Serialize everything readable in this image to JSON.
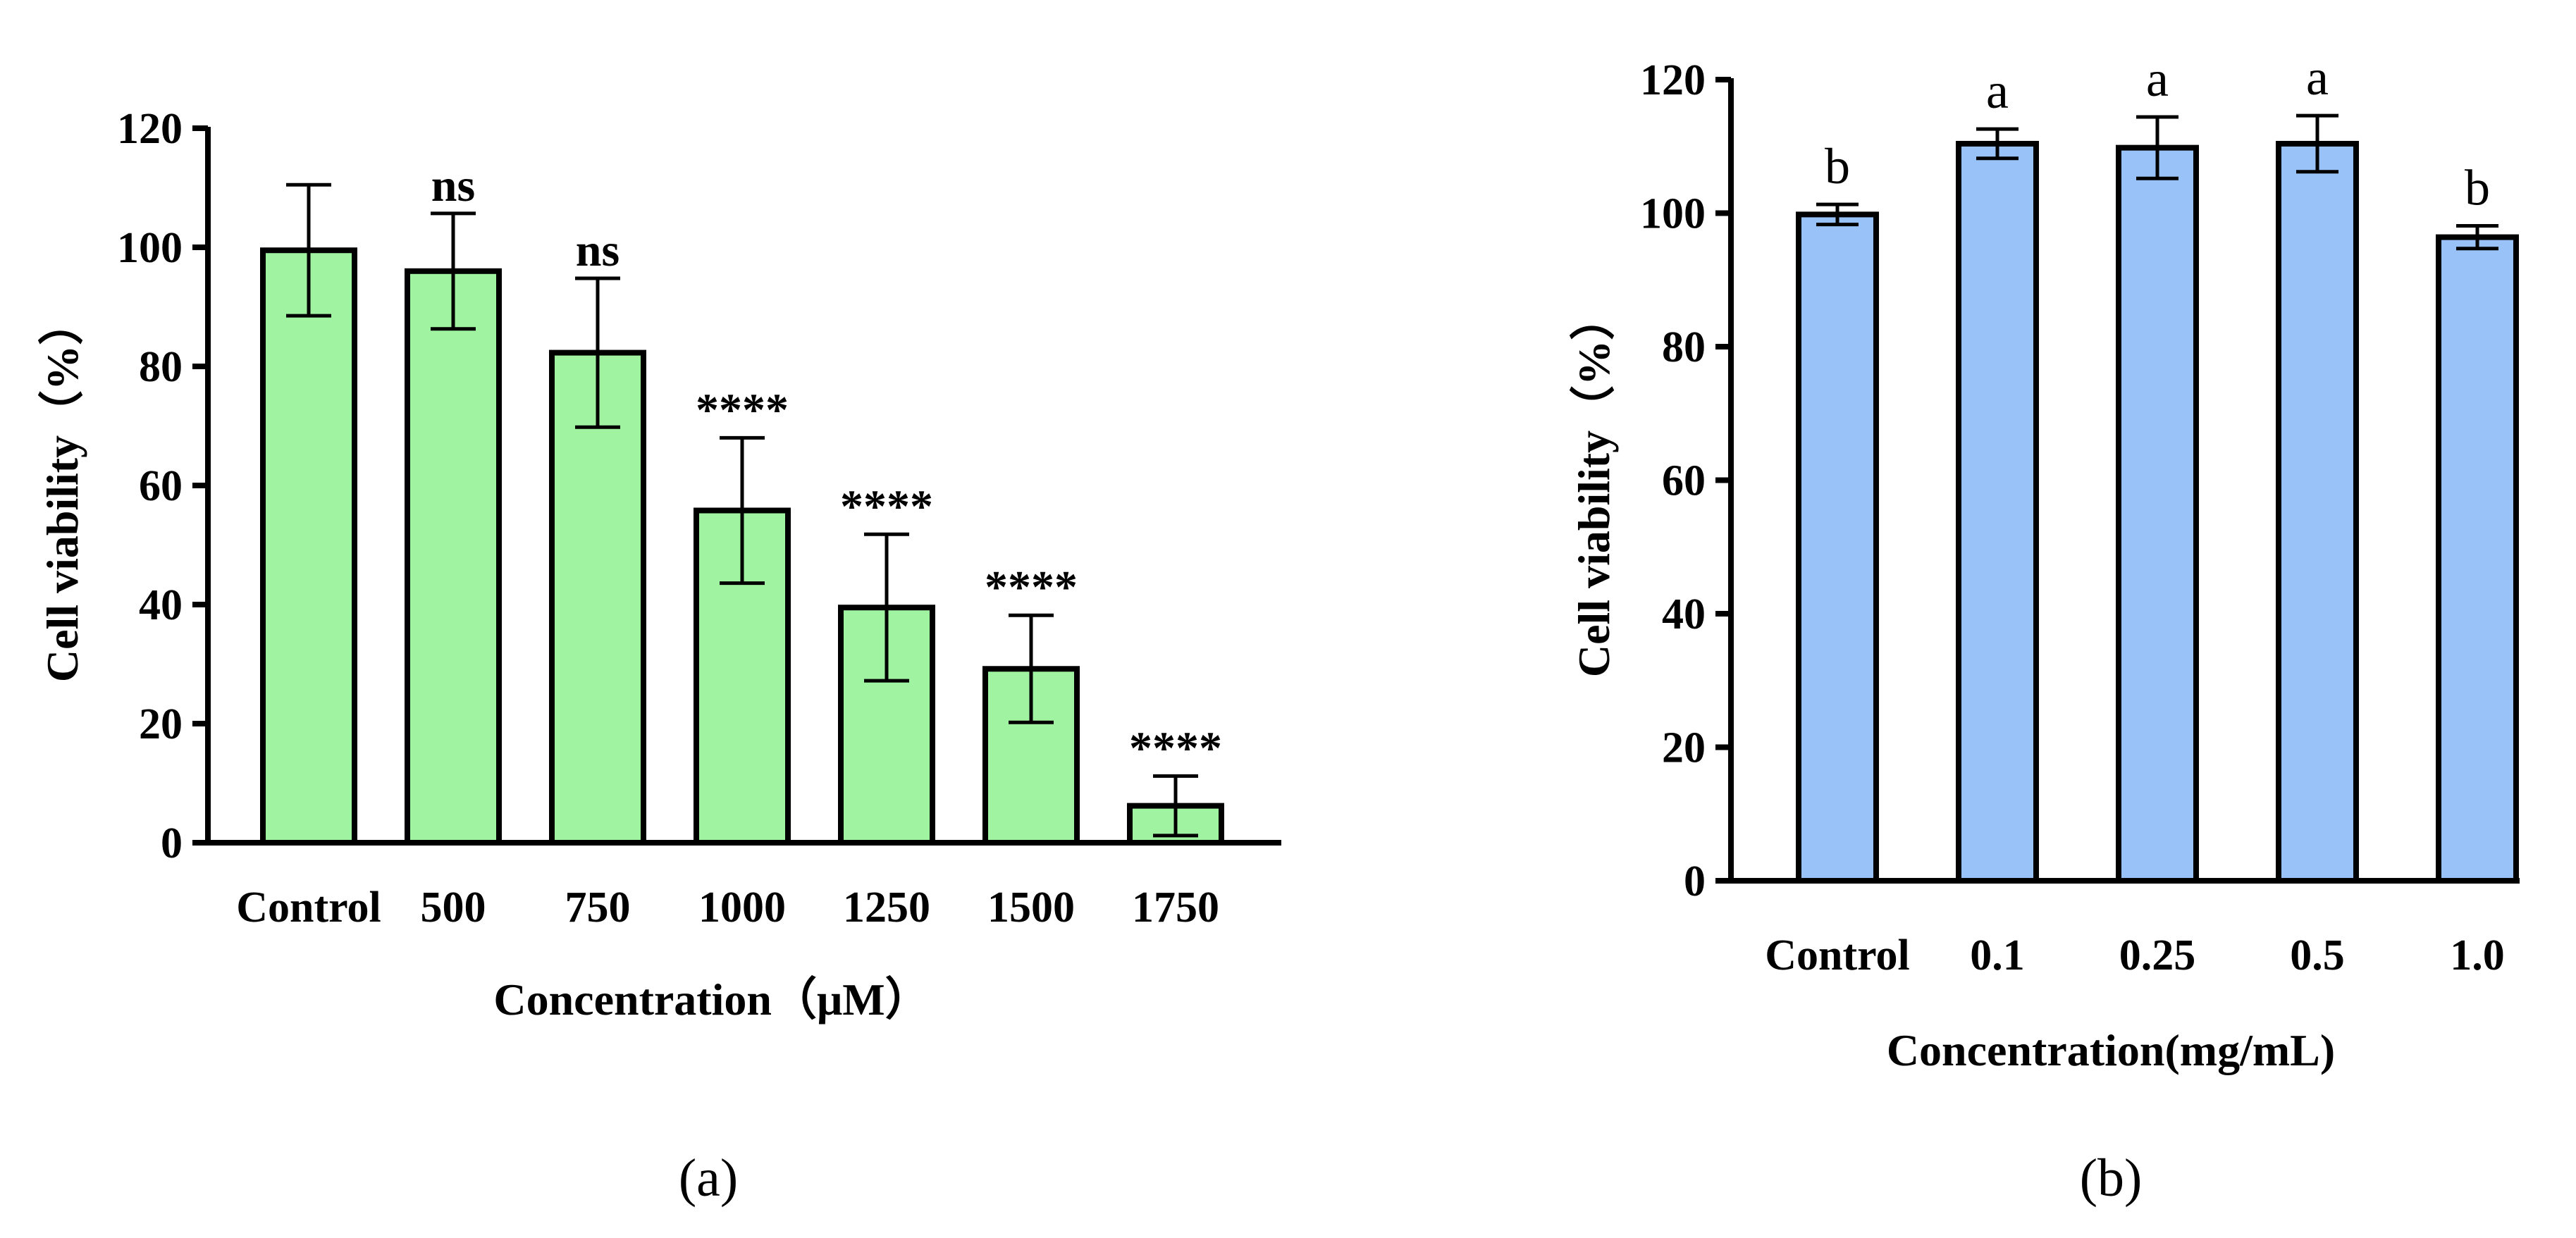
{
  "chart_data": [
    {
      "type": "bar",
      "panel": "(a)",
      "title": "",
      "xlabel": "Concentration（μM）",
      "ylabel": "Cell viability（%）",
      "ylim": [
        0,
        120
      ],
      "yticks": [
        0,
        20,
        40,
        60,
        80,
        100,
        120
      ],
      "categories": [
        "Control",
        "500",
        "750",
        "1000",
        "1250",
        "1500",
        "1750"
      ],
      "values": [
        99.5,
        96,
        82.3,
        55.8,
        39.5,
        29.2,
        6.2
      ],
      "errors": [
        11,
        9.7,
        12.5,
        12.2,
        12.3,
        9,
        5
      ],
      "annotations": [
        "",
        "ns",
        "ns",
        "****",
        "****",
        "****",
        "****"
      ],
      "color": "#a0f3a0"
    },
    {
      "type": "bar",
      "panel": "(b)",
      "title": "",
      "xlabel": "Concentration(mg/mL)",
      "ylabel": "Cell viability（%）",
      "ylim": [
        0,
        120
      ],
      "yticks": [
        0,
        20,
        40,
        60,
        80,
        100,
        120
      ],
      "categories": [
        "Control",
        "0.1",
        "0.25",
        "0.5",
        "1.0"
      ],
      "values": [
        99.8,
        110.4,
        109.8,
        110.4,
        96.4
      ],
      "errors": [
        1.5,
        2.2,
        4.6,
        4.2,
        1.7
      ],
      "annotations": [
        "b",
        "a",
        "a",
        "a",
        "b"
      ],
      "color": "#99c2f8"
    }
  ]
}
